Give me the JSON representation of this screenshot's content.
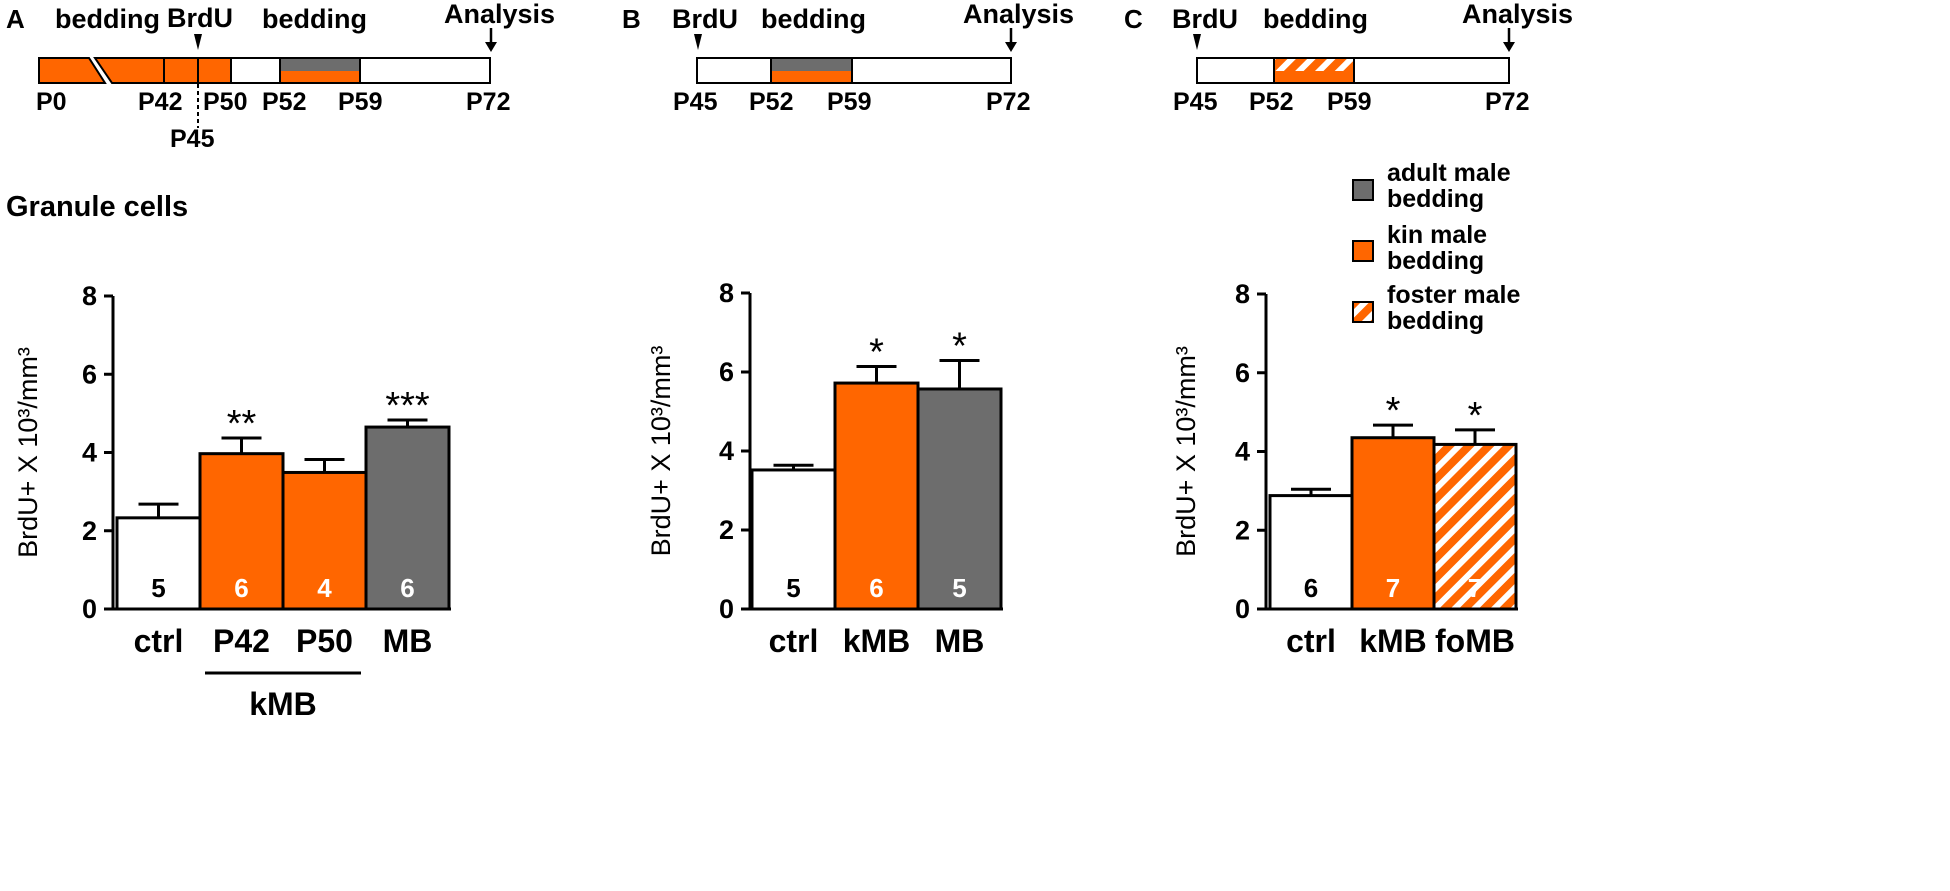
{
  "colors": {
    "kin": "#ff6600",
    "adult": "#6d6d6d",
    "ctrl": "#ffffff",
    "stroke": "#000000"
  },
  "section_title": "Granule cells",
  "legend": [
    {
      "key": "adult",
      "line1": "adult male",
      "line2": "bedding",
      "fill": "adult"
    },
    {
      "key": "kin",
      "line1": "kin male",
      "line2": "bedding",
      "fill": "kin"
    },
    {
      "key": "foster",
      "line1": "foster male",
      "line2": "bedding",
      "fill": "hatch"
    }
  ],
  "timelines": [
    {
      "panel": "A",
      "labels": {
        "bedding1": "bedding",
        "brdu": "BrdU",
        "bedding2": "bedding",
        "analysis": "Analysis"
      },
      "ticks": [
        "P0",
        "P42",
        "P50",
        "P52",
        "P59",
        "P72"
      ],
      "extra_tick": "P45"
    },
    {
      "panel": "B",
      "labels": {
        "brdu": "BrdU",
        "bedding": "bedding",
        "analysis": "Analysis"
      },
      "ticks": [
        "P45",
        "P52",
        "P59",
        "P72"
      ]
    },
    {
      "panel": "C",
      "labels": {
        "brdu": "BrdU",
        "bedding": "bedding",
        "analysis": "Analysis"
      },
      "ticks": [
        "P45",
        "P52",
        "P59",
        "P72"
      ]
    }
  ],
  "chart_data": [
    {
      "type": "bar",
      "panel": "A",
      "ylabel": "BrdU+ X 10³/mm³",
      "ylim": [
        0,
        8
      ],
      "yticks": [
        "0",
        "2",
        "4",
        "6",
        "8"
      ],
      "categories": [
        "ctrl",
        "P42",
        "P50",
        "MB"
      ],
      "values": [
        2.33,
        3.97,
        3.49,
        4.65
      ],
      "errors": [
        0.35,
        0.4,
        0.33,
        0.18
      ],
      "n_labels": [
        "5",
        "6",
        "4",
        "6"
      ],
      "significance": [
        "",
        "**",
        "",
        "***"
      ],
      "fills": [
        "ctrl",
        "kin",
        "kin",
        "adult"
      ],
      "group_label": "kMB"
    },
    {
      "type": "bar",
      "panel": "B",
      "ylabel": "BrdU+ X 10³/mm³",
      "ylim": [
        0,
        8
      ],
      "yticks": [
        "0",
        "2",
        "4",
        "6",
        "8"
      ],
      "categories": [
        "ctrl",
        "kMB",
        "MB"
      ],
      "values": [
        3.52,
        5.72,
        5.57
      ],
      "errors": [
        0.12,
        0.42,
        0.72
      ],
      "n_labels": [
        "5",
        "6",
        "5"
      ],
      "significance": [
        "",
        "*",
        "*"
      ],
      "fills": [
        "ctrl",
        "kin",
        "adult"
      ]
    },
    {
      "type": "bar",
      "panel": "C",
      "ylabel": "BrdU+ X 10³/mm³",
      "ylim": [
        0,
        8
      ],
      "yticks": [
        "0",
        "2",
        "4",
        "6",
        "8"
      ],
      "categories": [
        "ctrl",
        "kMB",
        "foMB"
      ],
      "values": [
        2.88,
        4.35,
        4.18
      ],
      "errors": [
        0.16,
        0.32,
        0.37
      ],
      "n_labels": [
        "6",
        "7",
        "7"
      ],
      "significance": [
        "",
        "*",
        "*"
      ],
      "fills": [
        "ctrl",
        "kin",
        "hatch"
      ]
    }
  ]
}
